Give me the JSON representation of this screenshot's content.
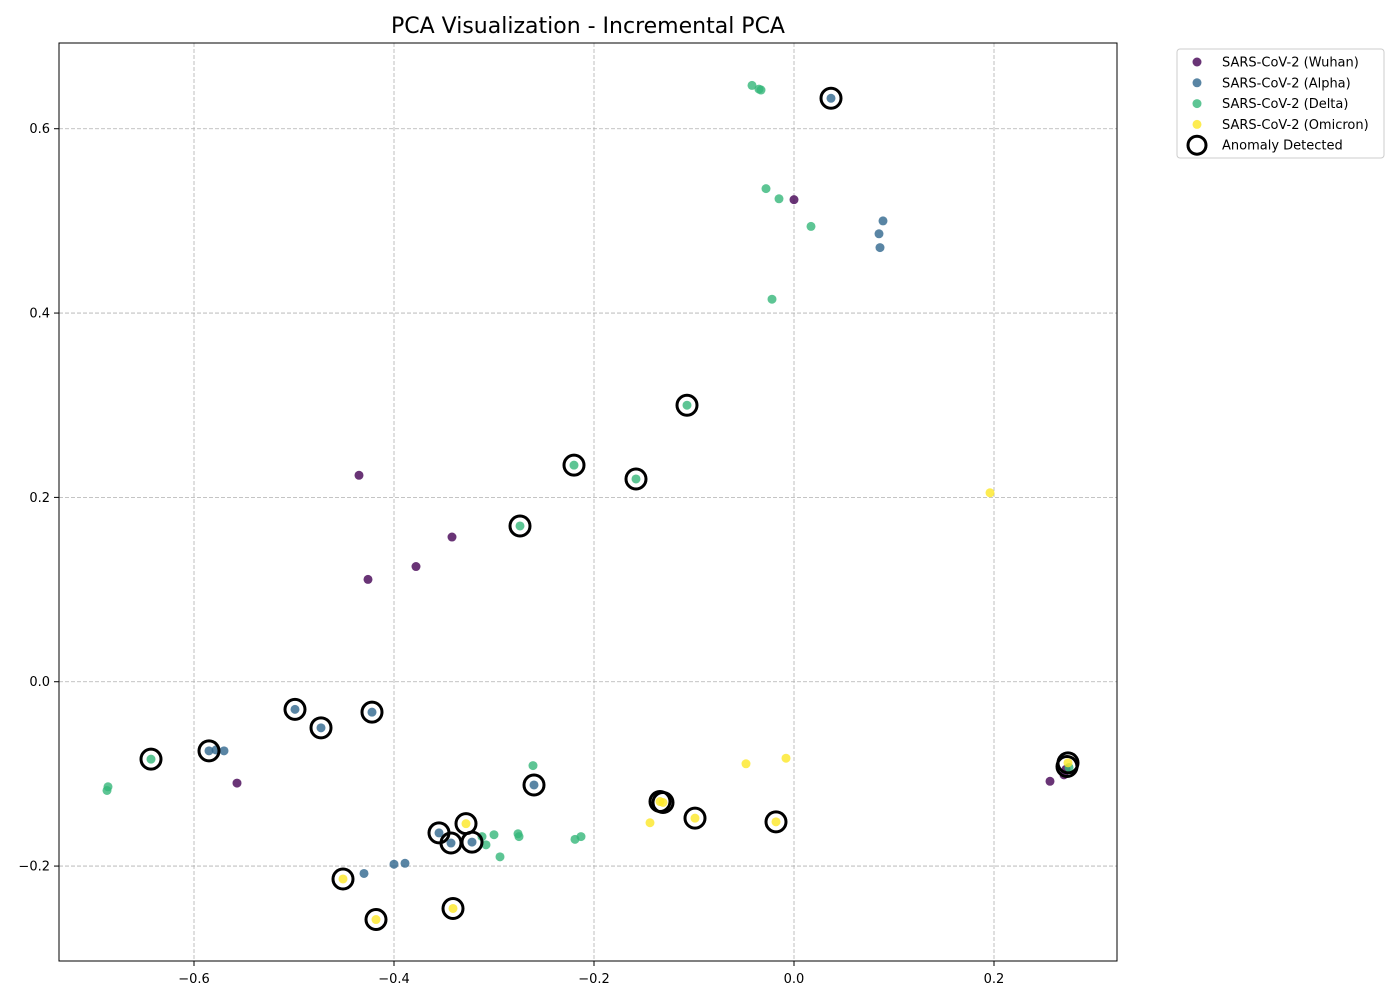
{
  "chart_data": {
    "type": "scatter",
    "title": "PCA Visualization - Incremental PCA",
    "xlabel": "",
    "ylabel": "",
    "xlim": [
      -0.735,
      0.323
    ],
    "ylim": [
      -0.303,
      0.693
    ],
    "x_ticks": [
      -0.6,
      -0.4,
      -0.2,
      0.0,
      0.2
    ],
    "x_tick_labels": [
      "−0.6",
      "−0.4",
      "−0.2",
      "0.0",
      "0.2"
    ],
    "y_ticks": [
      -0.2,
      0.0,
      0.2,
      0.4,
      0.6
    ],
    "y_tick_labels": [
      "−0.2",
      "0.0",
      "0.2",
      "0.4",
      "0.6"
    ],
    "grid": true,
    "legend_position": "outside-top-right",
    "series": [
      {
        "name": "SARS-CoV-2 (Wuhan)",
        "color": "#440154",
        "points": [
          [
            0.0,
            0.523
          ],
          [
            -0.435,
            0.224
          ],
          [
            -0.342,
            0.157
          ],
          [
            -0.378,
            0.125
          ],
          [
            -0.426,
            0.111
          ],
          [
            -0.557,
            -0.11
          ],
          [
            0.256,
            -0.108
          ],
          [
            0.27,
            -0.101
          ],
          [
            0.272,
            -0.095
          ]
        ]
      },
      {
        "name": "SARS-CoV-2 (Alpha)",
        "color": "#30678d",
        "points": [
          [
            0.037,
            0.633
          ],
          [
            0.089,
            0.5
          ],
          [
            0.085,
            0.486
          ],
          [
            0.086,
            0.471
          ],
          [
            -0.499,
            -0.03
          ],
          [
            -0.473,
            -0.05
          ],
          [
            -0.422,
            -0.033
          ],
          [
            -0.585,
            -0.075
          ],
          [
            -0.578,
            -0.074
          ],
          [
            -0.57,
            -0.075
          ],
          [
            -0.26,
            -0.112
          ],
          [
            -0.355,
            -0.164
          ],
          [
            -0.343,
            -0.175
          ],
          [
            -0.322,
            -0.174
          ],
          [
            -0.43,
            -0.208
          ],
          [
            -0.4,
            -0.198
          ],
          [
            -0.389,
            -0.197
          ]
        ]
      },
      {
        "name": "SARS-CoV-2 (Delta)",
        "color": "#35b779",
        "points": [
          [
            -0.042,
            0.647
          ],
          [
            -0.035,
            0.643
          ],
          [
            -0.033,
            0.642
          ],
          [
            -0.028,
            0.535
          ],
          [
            -0.015,
            0.524
          ],
          [
            0.017,
            0.494
          ],
          [
            -0.022,
            0.415
          ],
          [
            -0.107,
            0.3
          ],
          [
            -0.22,
            0.235
          ],
          [
            -0.158,
            0.22
          ],
          [
            -0.274,
            0.169
          ],
          [
            -0.643,
            -0.084
          ],
          [
            -0.686,
            -0.114
          ],
          [
            -0.687,
            -0.118
          ],
          [
            -0.261,
            -0.091
          ],
          [
            -0.312,
            -0.168
          ],
          [
            -0.308,
            -0.177
          ],
          [
            -0.3,
            -0.166
          ],
          [
            -0.294,
            -0.19
          ],
          [
            -0.276,
            -0.165
          ],
          [
            -0.275,
            -0.168
          ],
          [
            -0.219,
            -0.171
          ],
          [
            -0.213,
            -0.168
          ],
          [
            0.275,
            -0.093
          ]
        ]
      },
      {
        "name": "SARS-CoV-2 (Omicron)",
        "color": "#fde725",
        "points": [
          [
            0.196,
            0.205
          ],
          [
            -0.048,
            -0.089
          ],
          [
            -0.008,
            -0.083
          ],
          [
            -0.134,
            -0.13
          ],
          [
            -0.131,
            -0.131
          ],
          [
            -0.144,
            -0.153
          ],
          [
            -0.099,
            -0.148
          ],
          [
            -0.018,
            -0.152
          ],
          [
            -0.328,
            -0.154
          ],
          [
            -0.451,
            -0.214
          ],
          [
            -0.418,
            -0.258
          ],
          [
            -0.341,
            -0.246
          ],
          [
            0.274,
            -0.088
          ]
        ]
      }
    ],
    "anomaly_series": {
      "name": "Anomaly Detected",
      "points": [
        [
          0.037,
          0.633
        ],
        [
          -0.107,
          0.3
        ],
        [
          -0.22,
          0.235
        ],
        [
          -0.158,
          0.22
        ],
        [
          -0.274,
          0.169
        ],
        [
          -0.499,
          -0.03
        ],
        [
          -0.473,
          -0.05
        ],
        [
          -0.422,
          -0.033
        ],
        [
          -0.585,
          -0.075
        ],
        [
          -0.643,
          -0.084
        ],
        [
          -0.26,
          -0.112
        ],
        [
          -0.134,
          -0.13
        ],
        [
          -0.131,
          -0.131
        ],
        [
          -0.099,
          -0.148
        ],
        [
          -0.018,
          -0.152
        ],
        [
          -0.328,
          -0.154
        ],
        [
          -0.355,
          -0.164
        ],
        [
          -0.343,
          -0.175
        ],
        [
          -0.322,
          -0.174
        ],
        [
          -0.451,
          -0.214
        ],
        [
          -0.418,
          -0.258
        ],
        [
          -0.341,
          -0.246
        ],
        [
          0.274,
          -0.088
        ],
        [
          0.273,
          -0.092
        ]
      ]
    }
  }
}
